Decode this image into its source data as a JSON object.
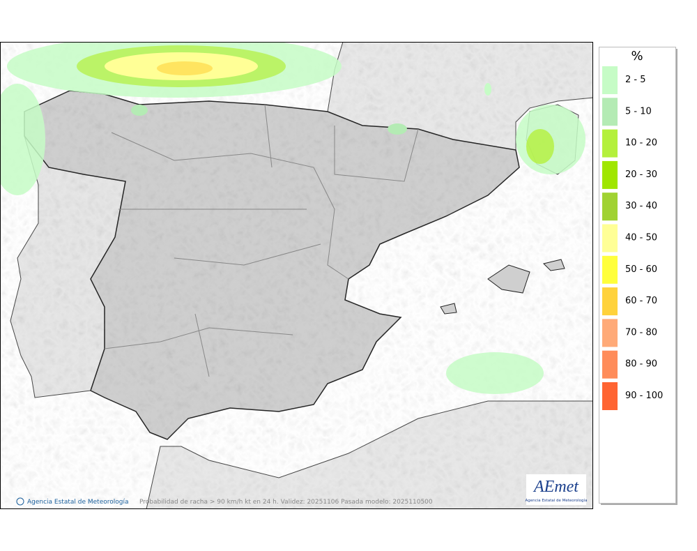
{
  "legend": {
    "title": "%",
    "items": [
      {
        "label": "2 - 5",
        "color": "#c6fcc6"
      },
      {
        "label": "5 - 10",
        "color": "#b4ebb4"
      },
      {
        "label": "10 - 20",
        "color": "#b4f03c"
      },
      {
        "label": "20 - 30",
        "color": "#a0e600"
      },
      {
        "label": "30 - 40",
        "color": "#a0d232"
      },
      {
        "label": "40 - 50",
        "color": "#ffff96"
      },
      {
        "label": "50 - 60",
        "color": "#ffff3c"
      },
      {
        "label": "60 - 70",
        "color": "#ffd23c"
      },
      {
        "label": "70 - 80",
        "color": "#ffaa78"
      },
      {
        "label": "80 - 90",
        "color": "#ff8c5a"
      },
      {
        "label": "90 - 100",
        "color": "#ff6432"
      }
    ]
  },
  "footer": {
    "credit": "Agencia Estatal de Meteorología",
    "caption": "Probabilidad de racha > 90 km/h kt en 24 h. Validez: 20251106 Pasada modelo: 2025110500"
  },
  "logo": {
    "name": "AEmet",
    "subtitle": "Agencia Estatal de Meteorología"
  }
}
